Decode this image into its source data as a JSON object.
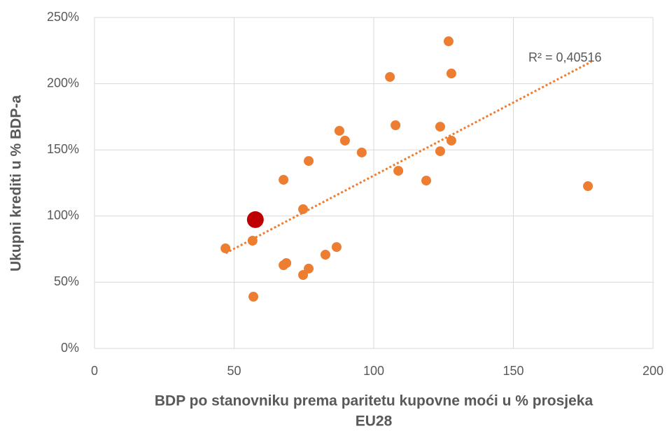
{
  "chart_data": {
    "type": "scatter",
    "xlabel": [
      "BDP po stanovniku prema paritetu kupovne moći u % prosjeka",
      "EU28"
    ],
    "ylabel": "Ukupni krediti u % BDP-a",
    "annotation": "R² = 0,40516",
    "xlim": [
      0,
      200
    ],
    "xticks": [
      0,
      50,
      100,
      150,
      200
    ],
    "ylim": [
      0,
      250
    ],
    "yticks": [
      {
        "value": 0,
        "label": "0%"
      },
      {
        "value": 50,
        "label": "50%"
      },
      {
        "value": 100,
        "label": "100%"
      },
      {
        "value": 150,
        "label": "150%"
      },
      {
        "value": 200,
        "label": "200%"
      },
      {
        "value": 250,
        "label": "250%"
      }
    ],
    "grid": true,
    "points": {
      "color": "#ed7d31",
      "x": [
        46.9,
        56.6,
        56.9,
        67.7,
        67.7,
        68.7,
        74.7,
        74.7,
        76.7,
        76.7,
        82.7,
        86.7,
        87.7,
        89.7,
        95.7,
        105.8,
        107.8,
        108.8,
        118.8,
        123.8,
        123.8,
        126.8,
        127.8,
        127.8,
        176.7
      ],
      "y": [
        75.6,
        81.4,
        39.1,
        127.4,
        62.9,
        64.5,
        105.2,
        55.5,
        141.6,
        60.3,
        70.8,
        76.6,
        164.4,
        157.0,
        148.0,
        205.1,
        168.6,
        134.2,
        126.8,
        167.5,
        149.0,
        232.0,
        207.7,
        157.0,
        122.6
      ]
    },
    "highlight": {
      "color": "#c00000",
      "x": 57.6,
      "y": 97.3
    },
    "trendline": {
      "color": "#ed7d31",
      "x": [
        47,
        178
      ],
      "y": [
        72,
        216.7
      ]
    }
  }
}
